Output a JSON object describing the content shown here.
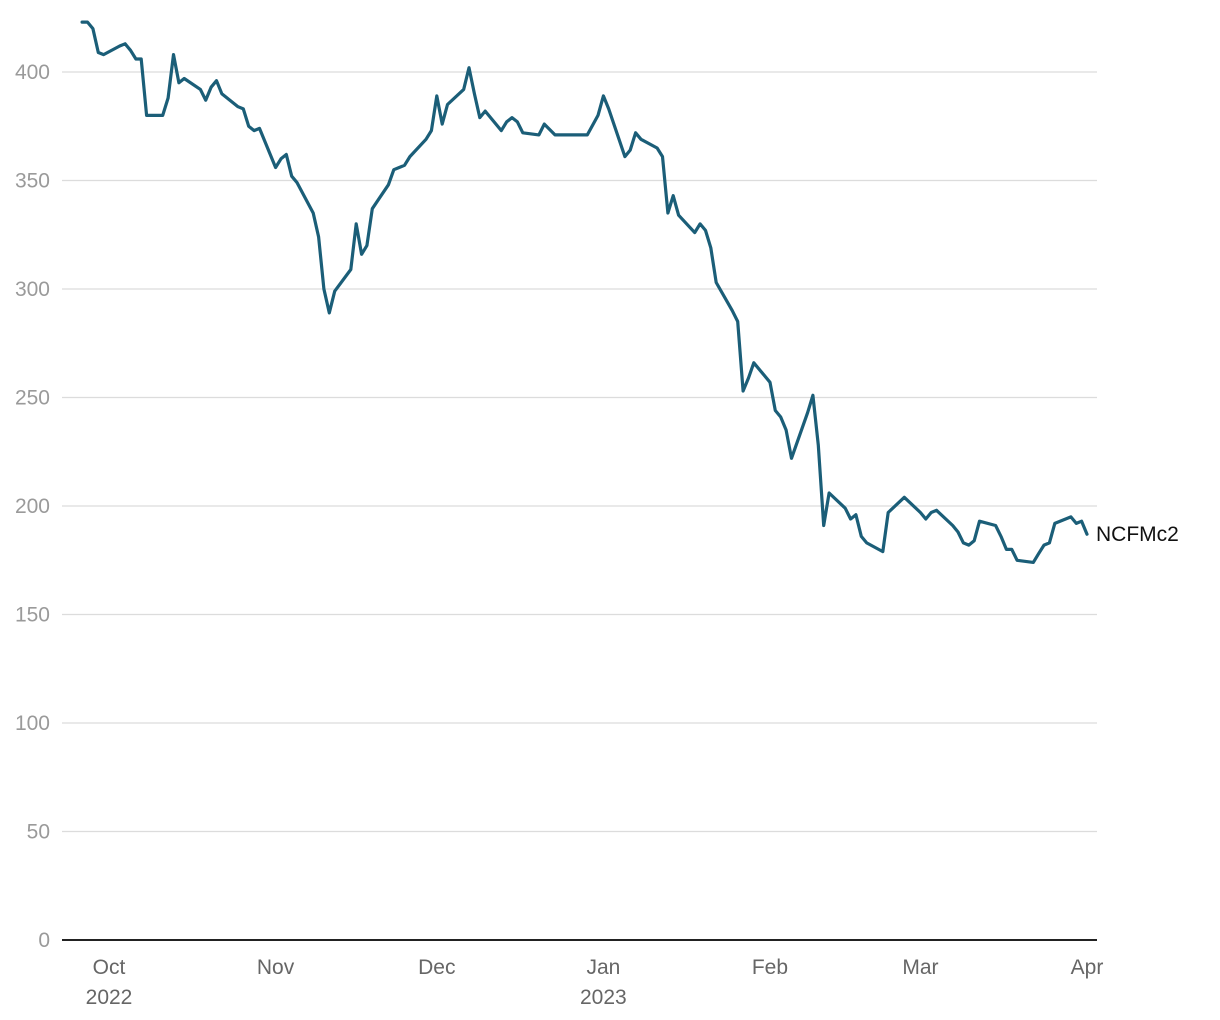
{
  "chart_data": {
    "type": "line",
    "title": "",
    "xlabel": "",
    "ylabel": "",
    "ylim": [
      0,
      400
    ],
    "yticks": [
      0,
      50,
      100,
      150,
      200,
      250,
      300,
      350,
      400
    ],
    "grid": true,
    "xticks": [
      {
        "date": "2022-10-01",
        "label": "Oct",
        "sublabel": "2022"
      },
      {
        "date": "2022-11-01",
        "label": "Nov",
        "sublabel": ""
      },
      {
        "date": "2022-12-01",
        "label": "Dec",
        "sublabel": ""
      },
      {
        "date": "2023-01-01",
        "label": "Jan",
        "sublabel": "2023"
      },
      {
        "date": "2023-02-01",
        "label": "Feb",
        "sublabel": ""
      },
      {
        "date": "2023-03-01",
        "label": "Mar",
        "sublabel": ""
      },
      {
        "date": "2023-04-01",
        "label": "Apr",
        "sublabel": ""
      }
    ],
    "series": [
      {
        "name": "NCFMc2",
        "color": "#1b5e78",
        "points": [
          [
            "2022-09-26",
            423
          ],
          [
            "2022-09-27",
            423
          ],
          [
            "2022-09-28",
            420
          ],
          [
            "2022-09-29",
            409
          ],
          [
            "2022-09-30",
            408
          ],
          [
            "2022-10-03",
            412
          ],
          [
            "2022-10-04",
            413
          ],
          [
            "2022-10-05",
            410
          ],
          [
            "2022-10-06",
            406
          ],
          [
            "2022-10-07",
            406
          ],
          [
            "2022-10-08",
            380
          ],
          [
            "2022-10-11",
            380
          ],
          [
            "2022-10-12",
            388
          ],
          [
            "2022-10-13",
            408
          ],
          [
            "2022-10-14",
            395
          ],
          [
            "2022-10-15",
            397
          ],
          [
            "2022-10-18",
            392
          ],
          [
            "2022-10-19",
            387
          ],
          [
            "2022-10-20",
            393
          ],
          [
            "2022-10-21",
            396
          ],
          [
            "2022-10-22",
            390
          ],
          [
            "2022-10-25",
            384
          ],
          [
            "2022-10-26",
            383
          ],
          [
            "2022-10-27",
            375
          ],
          [
            "2022-10-28",
            373
          ],
          [
            "2022-10-29",
            374
          ],
          [
            "2022-11-01",
            356
          ],
          [
            "2022-11-02",
            360
          ],
          [
            "2022-11-03",
            362
          ],
          [
            "2022-11-04",
            352
          ],
          [
            "2022-11-05",
            349
          ],
          [
            "2022-11-08",
            335
          ],
          [
            "2022-11-09",
            324
          ],
          [
            "2022-11-10",
            300
          ],
          [
            "2022-11-11",
            289
          ],
          [
            "2022-11-12",
            299
          ],
          [
            "2022-11-15",
            309
          ],
          [
            "2022-11-16",
            330
          ],
          [
            "2022-11-17",
            316
          ],
          [
            "2022-11-18",
            320
          ],
          [
            "2022-11-19",
            337
          ],
          [
            "2022-11-22",
            348
          ],
          [
            "2022-11-23",
            355
          ],
          [
            "2022-11-24",
            356
          ],
          [
            "2022-11-25",
            357
          ],
          [
            "2022-11-26",
            361
          ],
          [
            "2022-11-29",
            369
          ],
          [
            "2022-11-30",
            373
          ],
          [
            "2022-12-01",
            389
          ],
          [
            "2022-12-02",
            376
          ],
          [
            "2022-12-03",
            385
          ],
          [
            "2022-12-06",
            392
          ],
          [
            "2022-12-07",
            402
          ],
          [
            "2022-12-08",
            390
          ],
          [
            "2022-12-09",
            379
          ],
          [
            "2022-12-10",
            382
          ],
          [
            "2022-12-13",
            373
          ],
          [
            "2022-12-14",
            377
          ],
          [
            "2022-12-15",
            379
          ],
          [
            "2022-12-16",
            377
          ],
          [
            "2022-12-17",
            372
          ],
          [
            "2022-12-20",
            371
          ],
          [
            "2022-12-21",
            376
          ],
          [
            "2022-12-23",
            371
          ],
          [
            "2022-12-27",
            371
          ],
          [
            "2022-12-29",
            371
          ],
          [
            "2022-12-31",
            380
          ],
          [
            "2023-01-01",
            389
          ],
          [
            "2023-01-02",
            383
          ],
          [
            "2023-01-05",
            361
          ],
          [
            "2023-01-06",
            364
          ],
          [
            "2023-01-07",
            372
          ],
          [
            "2023-01-08",
            369
          ],
          [
            "2023-01-11",
            365
          ],
          [
            "2023-01-12",
            361
          ],
          [
            "2023-01-13",
            335
          ],
          [
            "2023-01-14",
            343
          ],
          [
            "2023-01-15",
            334
          ],
          [
            "2023-01-18",
            326
          ],
          [
            "2023-01-19",
            330
          ],
          [
            "2023-01-20",
            327
          ],
          [
            "2023-01-21",
            319
          ],
          [
            "2023-01-22",
            303
          ],
          [
            "2023-01-25",
            290
          ],
          [
            "2023-01-26",
            285
          ],
          [
            "2023-01-27",
            253
          ],
          [
            "2023-01-28",
            259
          ],
          [
            "2023-01-29",
            266
          ],
          [
            "2023-02-01",
            257
          ],
          [
            "2023-02-02",
            244
          ],
          [
            "2023-02-03",
            241
          ],
          [
            "2023-02-04",
            235
          ],
          [
            "2023-02-05",
            222
          ],
          [
            "2023-02-08",
            243
          ],
          [
            "2023-02-09",
            251
          ],
          [
            "2023-02-10",
            228
          ],
          [
            "2023-02-11",
            191
          ],
          [
            "2023-02-12",
            206
          ],
          [
            "2023-02-15",
            199
          ],
          [
            "2023-02-16",
            194
          ],
          [
            "2023-02-17",
            196
          ],
          [
            "2023-02-18",
            186
          ],
          [
            "2023-02-19",
            183
          ],
          [
            "2023-02-22",
            179
          ],
          [
            "2023-02-23",
            197
          ],
          [
            "2023-02-26",
            204
          ],
          [
            "2023-03-01",
            197
          ],
          [
            "2023-03-02",
            194
          ],
          [
            "2023-03-03",
            197
          ],
          [
            "2023-03-04",
            198
          ],
          [
            "2023-03-07",
            191
          ],
          [
            "2023-03-08",
            188
          ],
          [
            "2023-03-09",
            183
          ],
          [
            "2023-03-10",
            182
          ],
          [
            "2023-03-11",
            184
          ],
          [
            "2023-03-12",
            193
          ],
          [
            "2023-03-15",
            191
          ],
          [
            "2023-03-16",
            186
          ],
          [
            "2023-03-17",
            180
          ],
          [
            "2023-03-18",
            180
          ],
          [
            "2023-03-19",
            175
          ],
          [
            "2023-03-22",
            174
          ],
          [
            "2023-03-23",
            178
          ],
          [
            "2023-03-24",
            182
          ],
          [
            "2023-03-25",
            183
          ],
          [
            "2023-03-26",
            192
          ],
          [
            "2023-03-29",
            195
          ],
          [
            "2023-03-30",
            192
          ],
          [
            "2023-03-31",
            193
          ],
          [
            "2023-04-01",
            187
          ]
        ]
      }
    ]
  }
}
